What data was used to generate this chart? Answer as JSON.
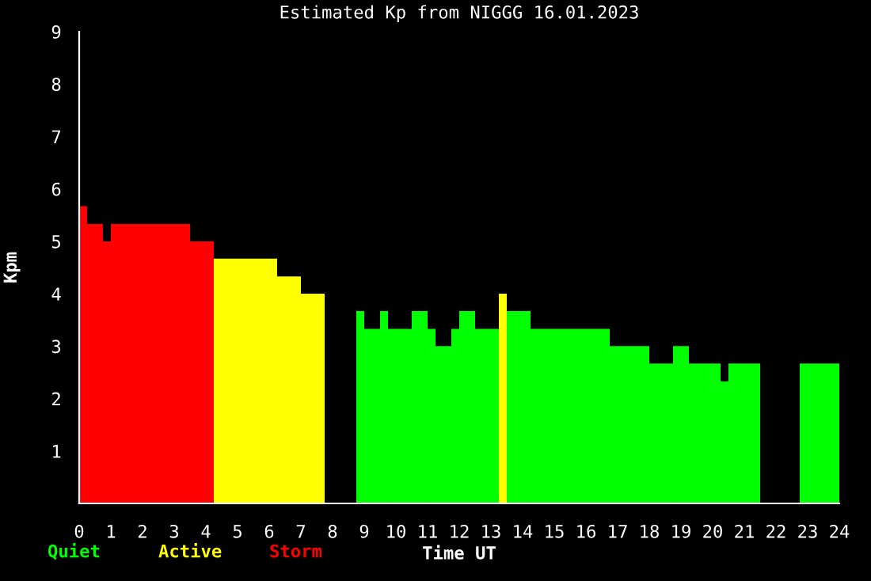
{
  "chart_data": {
    "type": "histogram",
    "title": "Estimated Kp from NIGGG 16.01.2023",
    "xlabel": "Time UT",
    "ylabel": "Kpm",
    "bins": [
      0,
      0.25,
      0.75,
      1.0,
      3.5,
      4.25,
      6.25,
      7.0,
      7.75,
      8.75,
      9.0,
      9.5,
      9.75,
      10.5,
      11.0,
      11.25,
      11.75,
      12.0,
      12.5,
      13.25,
      13.5,
      14.25,
      16.75,
      18.0,
      18.75,
      19.25,
      20.25,
      20.5,
      21.5,
      22.75,
      24
    ],
    "series": [
      {
        "name": "Quiet",
        "color": "#00ff00",
        "values": [
          null,
          null,
          null,
          null,
          null,
          null,
          null,
          null,
          null,
          3.67,
          3.33,
          3.67,
          3.33,
          3.67,
          3.33,
          3.0,
          3.33,
          3.67,
          3.33,
          null,
          3.67,
          3.33,
          3.0,
          2.67,
          3.0,
          2.67,
          2.33,
          2.67,
          null,
          2.67
        ]
      },
      {
        "name": "Active",
        "color": "#ffff00",
        "values": [
          null,
          null,
          null,
          null,
          null,
          4.67,
          4.33,
          4.0,
          null,
          null,
          null,
          null,
          null,
          null,
          null,
          null,
          null,
          null,
          null,
          4.0,
          null,
          null,
          null,
          null,
          null,
          null,
          null,
          null,
          null,
          null
        ]
      },
      {
        "name": "Storm",
        "color": "#ff0000",
        "values": [
          5.67,
          5.33,
          5.0,
          5.33,
          5.0,
          null,
          null,
          null,
          null,
          null,
          null,
          null,
          null,
          null,
          null,
          null,
          null,
          null,
          null,
          null,
          null,
          null,
          null,
          null,
          null,
          null,
          null,
          null,
          null,
          null
        ]
      }
    ],
    "xlim": [
      0,
      24
    ],
    "xticks": [
      0,
      1,
      2,
      3,
      4,
      5,
      6,
      7,
      8,
      9,
      10,
      11,
      12,
      13,
      14,
      15,
      16,
      17,
      18,
      19,
      20,
      21,
      22,
      23,
      24
    ],
    "ylim": [
      0,
      9
    ],
    "yticks": [
      1,
      2,
      3,
      4,
      5,
      6,
      7,
      8,
      9
    ],
    "legend": "bottom left"
  }
}
